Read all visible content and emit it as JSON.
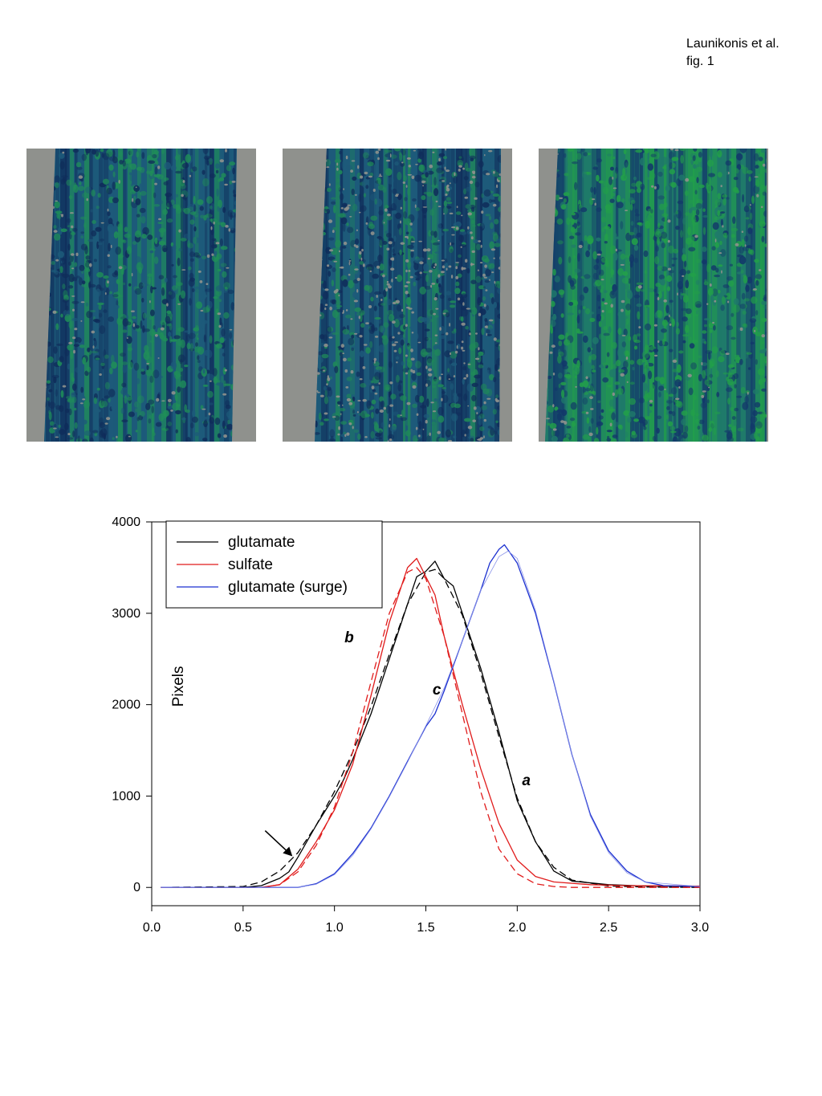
{
  "header": {
    "line1": "Launikonis et al.",
    "line2": "fig. 1"
  },
  "images": {
    "panels": [
      {
        "id": "panel-a",
        "background": "#8f918d",
        "dark": "#0f2c5a",
        "mid": "#1d5a7a",
        "light": "#1f8f58",
        "speckle": 0.06
      },
      {
        "id": "panel-b",
        "background": "#8f918d",
        "dark": "#0f2c5a",
        "mid": "#1d5a7a",
        "light": "#1f8a58",
        "speckle": 0.22
      },
      {
        "id": "panel-c",
        "background": "#8f918d",
        "dark": "#12376a",
        "mid": "#1f7a6a",
        "light": "#22a049",
        "speckle": 0.05
      }
    ]
  },
  "chart_data": {
    "type": "line",
    "ylabel": "Pixels",
    "xlabel": "",
    "xlim": [
      0.0,
      3.0
    ],
    "ylim": [
      -200,
      4000
    ],
    "xticks": [
      "0.0",
      "0.5",
      "1.0",
      "1.5",
      "2.0",
      "2.5",
      "3.0"
    ],
    "yticks": [
      "0",
      "1000",
      "2000",
      "3000",
      "4000"
    ],
    "legend": {
      "position": "top-left",
      "entries": [
        "glutamate",
        "sulfate",
        "glutamate (surge)"
      ]
    },
    "series": [
      {
        "name": "glutamate",
        "color": "#000000",
        "style": "solid",
        "x": [
          0.05,
          0.5,
          0.6,
          0.7,
          0.75,
          0.8,
          0.9,
          1.0,
          1.05,
          1.1,
          1.2,
          1.3,
          1.4,
          1.45,
          1.5,
          1.55,
          1.6,
          1.65,
          1.7,
          1.8,
          1.9,
          2.0,
          2.1,
          2.2,
          2.3,
          2.5,
          2.7,
          3.0
        ],
        "values": [
          0,
          0,
          20,
          100,
          170,
          330,
          680,
          1000,
          1180,
          1400,
          1900,
          2500,
          3100,
          3400,
          3460,
          3570,
          3380,
          3300,
          3000,
          2400,
          1700,
          950,
          500,
          180,
          70,
          30,
          15,
          10
        ]
      },
      {
        "name": "glutamate fit",
        "color": "#000000",
        "style": "dashed",
        "x": [
          0.05,
          0.5,
          0.6,
          0.7,
          0.8,
          0.9,
          1.0,
          1.1,
          1.2,
          1.3,
          1.4,
          1.5,
          1.55,
          1.6,
          1.7,
          1.8,
          1.9,
          2.0,
          2.1,
          2.2,
          2.3,
          2.5,
          2.7,
          3.0
        ],
        "values": [
          0,
          10,
          60,
          180,
          380,
          680,
          1050,
          1480,
          1980,
          2550,
          3100,
          3450,
          3480,
          3380,
          2980,
          2350,
          1650,
          980,
          500,
          220,
          80,
          15,
          5,
          0
        ]
      },
      {
        "name": "sulfate",
        "color": "#e01b1b",
        "style": "solid",
        "x": [
          0.05,
          0.6,
          0.7,
          0.8,
          0.9,
          1.0,
          1.1,
          1.2,
          1.3,
          1.35,
          1.4,
          1.45,
          1.5,
          1.55,
          1.6,
          1.7,
          1.8,
          1.9,
          2.0,
          2.1,
          2.2,
          2.4,
          2.6,
          3.0
        ],
        "values": [
          0,
          0,
          30,
          200,
          500,
          850,
          1350,
          2100,
          2900,
          3200,
          3500,
          3600,
          3400,
          3200,
          2750,
          2000,
          1300,
          700,
          300,
          120,
          60,
          30,
          20,
          15
        ]
      },
      {
        "name": "sulfate fit",
        "color": "#e01b1b",
        "style": "dashed",
        "x": [
          0.05,
          0.6,
          0.7,
          0.8,
          0.9,
          1.0,
          1.1,
          1.2,
          1.3,
          1.4,
          1.45,
          1.5,
          1.6,
          1.7,
          1.8,
          1.9,
          2.0,
          2.1,
          2.2,
          2.3,
          2.5,
          2.7,
          3.0
        ],
        "values": [
          0,
          0,
          30,
          170,
          460,
          880,
          1480,
          2250,
          3000,
          3450,
          3500,
          3380,
          2750,
          1900,
          1050,
          420,
          150,
          40,
          10,
          0,
          0,
          0,
          0
        ]
      },
      {
        "name": "glutamate (surge)",
        "color": "#1a2fd0",
        "style": "solid",
        "x": [
          0.05,
          0.8,
          0.9,
          1.0,
          1.1,
          1.2,
          1.3,
          1.4,
          1.5,
          1.55,
          1.6,
          1.7,
          1.8,
          1.85,
          1.9,
          1.93,
          2.0,
          2.1,
          2.2,
          2.3,
          2.4,
          2.5,
          2.6,
          2.7,
          2.8,
          3.0
        ],
        "values": [
          0,
          0,
          40,
          150,
          370,
          650,
          1000,
          1380,
          1760,
          1900,
          2150,
          2700,
          3250,
          3550,
          3700,
          3750,
          3550,
          3000,
          2250,
          1450,
          800,
          400,
          180,
          60,
          20,
          10
        ]
      },
      {
        "name": "glutamate (surge) fit",
        "color": "#8a93e8",
        "style": "thin",
        "x": [
          0.05,
          0.8,
          0.9,
          1.0,
          1.1,
          1.2,
          1.3,
          1.4,
          1.5,
          1.6,
          1.7,
          1.8,
          1.9,
          1.95,
          2.0,
          2.1,
          2.2,
          2.3,
          2.4,
          2.5,
          2.6,
          2.7,
          3.0
        ],
        "values": [
          0,
          0,
          35,
          140,
          350,
          640,
          990,
          1370,
          1770,
          2180,
          2700,
          3250,
          3620,
          3680,
          3600,
          3030,
          2260,
          1450,
          780,
          380,
          160,
          60,
          10
        ]
      }
    ],
    "annotations": [
      {
        "text": "b",
        "x": 1.08,
        "y": 2680
      },
      {
        "text": "c",
        "x": 1.56,
        "y": 2110
      },
      {
        "text": "a",
        "x": 2.05,
        "y": 1120
      },
      {
        "text": "↓",
        "kind": "arrow",
        "x": 0.77,
        "y": 340
      }
    ]
  }
}
